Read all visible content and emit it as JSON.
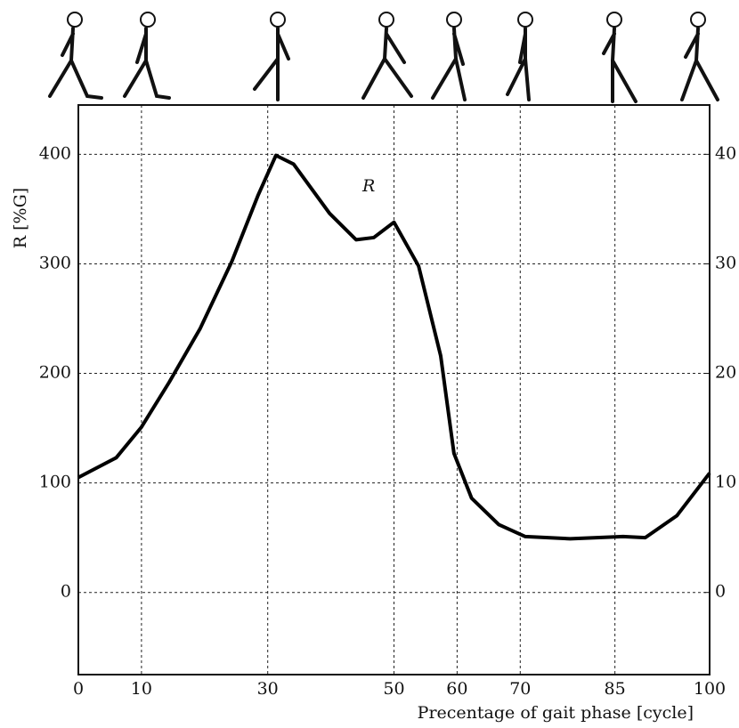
{
  "chart_data": {
    "type": "line",
    "ylabel": "R [%G]",
    "xlabel": "Precentage of gait phase [cycle]",
    "annotation": "R",
    "x": [
      0,
      6,
      10,
      14.4,
      19.3,
      24.3,
      28.5,
      31.3,
      34.1,
      39.8,
      44,
      46.8,
      50,
      53.9,
      57.4,
      59.5,
      62.3,
      66.6,
      70.8,
      77.9,
      86.3,
      89.8,
      94.8,
      100
    ],
    "series": [
      {
        "name": "R",
        "color": "#000000",
        "values": [
          105,
          123,
          151,
          192,
          241,
          302,
          363,
          399,
          391,
          346,
          322,
          324,
          338,
          298,
          216,
          127,
          86,
          62,
          51,
          49,
          51,
          50,
          70,
          109
        ]
      }
    ],
    "xlim": [
      0,
      100
    ],
    "xticks": [
      0,
      10,
      30,
      50,
      60,
      70,
      85,
      100
    ],
    "ylim": [
      -75,
      445
    ],
    "yticks": [
      0,
      100,
      200,
      300,
      400
    ],
    "y2lim": [
      -7.5,
      44.5
    ],
    "y2ticks": [
      0,
      10,
      20,
      30,
      40
    ],
    "grid": true
  }
}
